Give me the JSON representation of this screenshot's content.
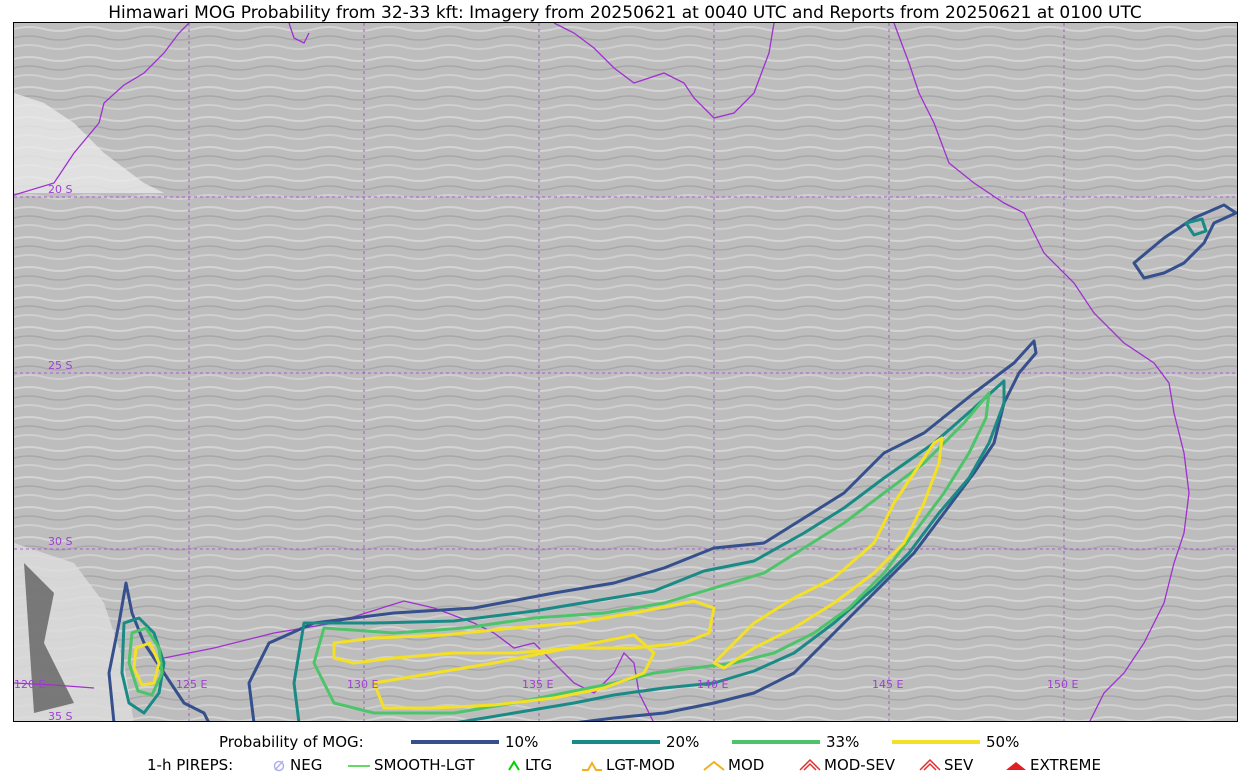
{
  "title": "Himawari MOG Probability from 32-33 kft: Imagery from 20250621 at 0040 UTC and Reports from 20250621 at 0100 UTC",
  "grid_labels": {
    "lat": [
      "20 S",
      "25 S",
      "30 S",
      "35 S"
    ],
    "lon": [
      "120 E",
      "125 E",
      "130 E",
      "135 E",
      "140 E",
      "145 E",
      "150 E"
    ]
  },
  "legend": {
    "prob_label": "Probability of MOG:",
    "levels": [
      {
        "label": "10%",
        "color": "#35508c"
      },
      {
        "label": "20%",
        "color": "#1a8a86"
      },
      {
        "label": "33%",
        "color": "#4ec46a"
      },
      {
        "label": "50%",
        "color": "#f4e025"
      }
    ],
    "pireps_label": "1-h PIREPS:",
    "pireps": [
      {
        "label": "NEG",
        "icon": "neg-icon",
        "color": "#b0b0f0"
      },
      {
        "label": "SMOOTH-LGT",
        "icon": "smooth-lgt-icon",
        "color": "#33cc33"
      },
      {
        "label": "LTG",
        "icon": "ltg-icon",
        "color": "#00cc00"
      },
      {
        "label": "LGT-MOD",
        "icon": "lgt-mod-icon",
        "color": "#f0b020"
      },
      {
        "label": "MOD",
        "icon": "mod-icon",
        "color": "#f0b020"
      },
      {
        "label": "MOD-SEV",
        "icon": "mod-sev-icon",
        "color": "#e03030"
      },
      {
        "label": "SEV",
        "icon": "sev-icon",
        "color": "#e03030"
      },
      {
        "label": "EXTREME",
        "icon": "extreme-icon",
        "color": "#e02020"
      }
    ]
  }
}
